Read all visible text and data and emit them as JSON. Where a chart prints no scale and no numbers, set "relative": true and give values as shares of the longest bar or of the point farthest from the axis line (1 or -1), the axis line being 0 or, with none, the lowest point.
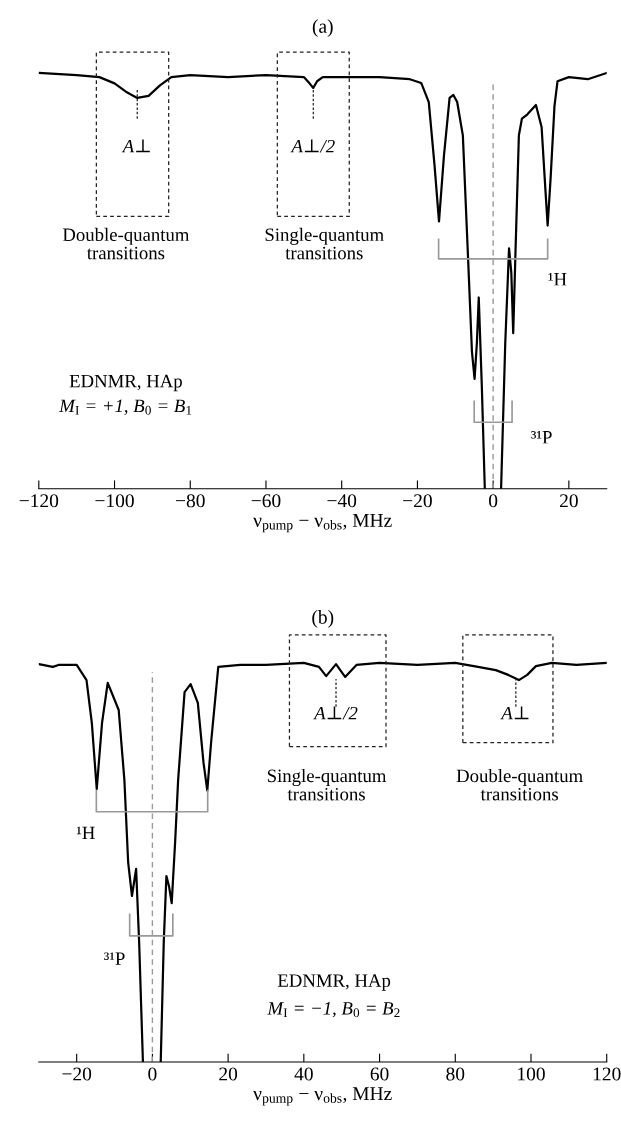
{
  "chart_data": [
    {
      "type": "line",
      "title": "(a)",
      "xlabel": "ν$_{pump}$ − ν$_{obs}$, MHz",
      "relative": true,
      "tick_labels": "x",
      "xlim": [
        -120,
        30
      ],
      "xticks": [
        {
          "value": -120,
          "label": "−120"
        },
        {
          "value": -100,
          "label": "−100"
        },
        {
          "value": -80,
          "label": "−80"
        },
        {
          "value": -60,
          "label": "−60"
        },
        {
          "value": -40,
          "label": "−40"
        },
        {
          "value": -20,
          "label": "−20"
        },
        0,
        20
      ],
      "x": [
        -120,
        -110,
        -104,
        -100,
        -97,
        -94,
        -91,
        -88,
        -85,
        -80,
        -70,
        -60,
        -50,
        -48.5,
        -47.5,
        -46.5,
        -45,
        -40,
        -30,
        -22,
        -19,
        -17,
        -15.5,
        -14.3,
        -13,
        -11.5,
        -10.5,
        -9.5,
        -8,
        -6.6,
        -5.6,
        -4.9,
        -4.3,
        -3.8,
        -3.0,
        -2.2,
        0,
        2.1,
        3.2,
        4.2,
        4.8,
        5.3,
        6.0,
        6.8,
        7.6,
        9,
        11.3,
        12.8,
        13.8,
        14.4,
        15.2,
        16.2,
        17,
        20,
        25,
        30
      ],
      "series": [
        {
          "color": "#000000",
          "values": [
            1.0,
            0.995,
            0.99,
            0.975,
            0.955,
            0.94,
            0.945,
            0.97,
            0.99,
            0.995,
            0.99,
            0.995,
            0.99,
            0.975,
            0.964,
            0.98,
            0.99,
            0.99,
            0.99,
            0.985,
            0.976,
            0.93,
            0.78,
            0.643,
            0.8,
            0.94,
            0.947,
            0.93,
            0.85,
            0.55,
            0.33,
            0.264,
            0.35,
            0.46,
            0.25,
            0,
            null,
            0,
            0.35,
            0.578,
            0.52,
            0.374,
            0.6,
            0.85,
            0.89,
            0.9,
            0.923,
            0.87,
            0.72,
            0.633,
            0.75,
            0.92,
            0.98,
            0.99,
            0.985,
            1.0
          ]
        }
      ],
      "ref_lines": [
        {
          "axis": "x",
          "value": 0,
          "color": "#999999",
          "line_style": "dashed"
        }
      ],
      "annotations": [
        "A⊥",
        "A⊥/2",
        "Double-quantum\ntransitions",
        "Single-quantum\ntransitions",
        "¹H",
        "³¹P",
        "EDNMR, HAp",
        "M$_{I}$ = +1, B$_{0}$ = B$_{1}$"
      ]
    },
    {
      "type": "line",
      "title": "(b)",
      "xlabel": "ν$_{pump}$ − ν$_{obs}$, MHz",
      "relative": true,
      "tick_labels": "x",
      "xlim": [
        -30,
        120
      ],
      "xticks": [
        {
          "value": -20,
          "label": "−20"
        },
        0,
        20,
        40,
        60,
        80,
        100,
        120
      ],
      "x": [
        -30,
        -26.3,
        -24.8,
        -20,
        -17.4,
        -16,
        -14.7,
        -13.3,
        -11.8,
        -8.9,
        -7.4,
        -6.4,
        -5.4,
        -4.3,
        -3.5,
        -2.5,
        0,
        2.2,
        3.0,
        3.7,
        4.4,
        5.1,
        6.0,
        6.8,
        8.5,
        10.1,
        12,
        13.5,
        14.5,
        15.5,
        17.4,
        23.2,
        30,
        40,
        44,
        45.9,
        48.5,
        50.9,
        53.9,
        60,
        70,
        80,
        86,
        90.7,
        94,
        96.8,
        99,
        101.3,
        105.5,
        112,
        120
      ],
      "series": [
        {
          "color": "#000000",
          "values": [
            0.997,
            0.99,
            0.995,
            0.995,
            0.957,
            0.85,
            0.684,
            0.85,
            0.95,
            0.882,
            0.707,
            0.5,
            0.416,
            0.484,
            0.3,
            0,
            null,
            0,
            0.3,
            0.466,
            0.44,
            0.398,
            0.55,
            0.707,
            0.927,
            0.947,
            0.9,
            0.75,
            0.68,
            0.8,
            0.99,
            0.995,
            0.995,
            1.0,
            0.99,
            0.967,
            0.997,
            0.965,
            0.995,
            1.0,
            0.995,
            1.0,
            0.99,
            0.982,
            0.97,
            0.957,
            0.97,
            0.992,
            1.0,
            0.995,
            1.0
          ]
        }
      ],
      "ref_lines": [
        {
          "axis": "x",
          "value": 0,
          "color": "#999999",
          "line_style": "dashed"
        }
      ],
      "annotations": [
        "A⊥/2",
        "A⊥",
        "Single-quantum\ntransitions",
        "Double-quantum\ntransitions",
        "¹H",
        "³¹P",
        "EDNMR, HAp",
        "M$_{I}$ = −1, B$_{0}$ = B$_{2}$"
      ]
    }
  ]
}
